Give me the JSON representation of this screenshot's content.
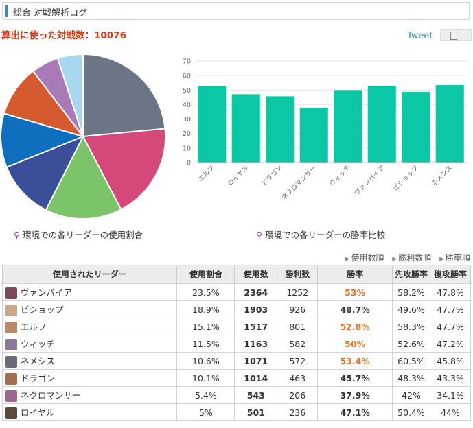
{
  "header": {
    "title": "総合 対戦解析ログ"
  },
  "battle_count": {
    "label": "算出に使った対戦数：10076"
  },
  "tweet": "Tweet",
  "captions": {
    "pie": "環境での各リーダーの使用割合",
    "bar": "環境での各リーダーの勝率比較"
  },
  "sort_links": [
    "使用数順",
    "勝利数順",
    "勝率順"
  ],
  "table": {
    "headers": [
      "使用されたリーダー",
      "使用割合",
      "使用数",
      "勝利数",
      "勝率",
      "先攻勝率",
      "後攻勝率"
    ],
    "rows": [
      {
        "leader": "ヴァンパイア",
        "share": "23.5%",
        "uses": "2364",
        "wins": "1252",
        "rate": "53%",
        "first": "58.2%",
        "second": "47.8%",
        "highlight": true,
        "color": "#7a4a5a"
      },
      {
        "leader": "ビショップ",
        "share": "18.9%",
        "uses": "1903",
        "wins": "926",
        "rate": "48.7%",
        "first": "49.6%",
        "second": "47.7%",
        "highlight": false,
        "color": "#c9a88a"
      },
      {
        "leader": "エルフ",
        "share": "15.1%",
        "uses": "1517",
        "wins": "801",
        "rate": "52.8%",
        "first": "58.3%",
        "second": "47.7%",
        "highlight": true,
        "color": "#b88a6a"
      },
      {
        "leader": "ウィッチ",
        "share": "11.5%",
        "uses": "1163",
        "wins": "582",
        "rate": "50%",
        "first": "52.6%",
        "second": "47.2%",
        "highlight": true,
        "color": "#8a7a9a"
      },
      {
        "leader": "ネメシス",
        "share": "10.6%",
        "uses": "1071",
        "wins": "572",
        "rate": "53.4%",
        "first": "60.5%",
        "second": "45.8%",
        "highlight": true,
        "color": "#6a6a7a"
      },
      {
        "leader": "ドラゴン",
        "share": "10.1%",
        "uses": "1014",
        "wins": "463",
        "rate": "45.7%",
        "first": "48.3%",
        "second": "43.3%",
        "highlight": false,
        "color": "#a07050"
      },
      {
        "leader": "ネクロマンサー",
        "share": "5.4%",
        "uses": "543",
        "wins": "206",
        "rate": "37.9%",
        "first": "42%",
        "second": "34.1%",
        "highlight": false,
        "color": "#9a6a8a"
      },
      {
        "leader": "ロイヤル",
        "share": "5%",
        "uses": "501",
        "wins": "236",
        "rate": "47.1%",
        "first": "50.4%",
        "second": "44%",
        "highlight": false,
        "color": "#5a4a3a"
      }
    ]
  },
  "chart_data": [
    {
      "type": "pie",
      "slices": [
        {
          "label": "ヴァンパイア",
          "value": 23.5,
          "color": "#6a7585"
        },
        {
          "label": "ビショップ",
          "value": 18.9,
          "color": "#d4487a"
        },
        {
          "label": "エルフ",
          "value": 15.1,
          "color": "#7cc46a"
        },
        {
          "label": "ウィッチ",
          "value": 11.5,
          "color": "#3a4e9a"
        },
        {
          "label": "ネメシス",
          "value": 10.6,
          "color": "#0f6fbf"
        },
        {
          "label": "ドラゴン",
          "value": 10.1,
          "color": "#d65a30"
        },
        {
          "label": "ネクロマンサー",
          "value": 5.4,
          "color": "#a87ab8"
        },
        {
          "label": "ロイヤル",
          "value": 5.0,
          "color": "#a8d8f0"
        }
      ]
    },
    {
      "type": "bar",
      "categories": [
        "エルフ",
        "ロイヤル",
        "ドラゴン",
        "ネクロマンサー",
        "ウィッチ",
        "ヴァンパイア",
        "ビショップ",
        "ネメシス"
      ],
      "values": [
        52.8,
        47.1,
        45.7,
        37.9,
        50,
        53,
        48.7,
        53.4
      ],
      "ylim": [
        0,
        70
      ],
      "yticks": [
        0,
        10,
        20,
        30,
        40,
        50,
        60,
        70
      ],
      "color": "#0cc7a5",
      "grid": true
    }
  ]
}
